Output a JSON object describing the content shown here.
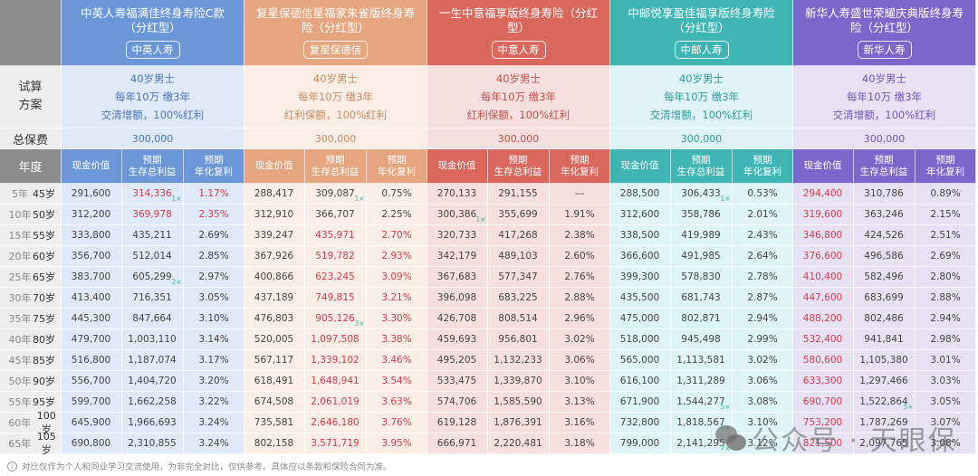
{
  "row_labels": {
    "plan": "试算\n方案",
    "premium": "总保费",
    "year": "年度"
  },
  "subheaders": [
    "现金价值",
    "预期\n生存总利益",
    "预期\n年化复利"
  ],
  "products": [
    {
      "name": "中英人寿福满佳终身寿险C款（分红型）",
      "company": "中英人寿",
      "plan": [
        "40岁男士",
        "每年10万 缴3年",
        "交清增额，100%红利"
      ],
      "premium": "300,000",
      "colors": {
        "head": "#6b97d9",
        "band": "#dfe9f8",
        "text": "#4a74b8"
      }
    },
    {
      "name": "复星保德信星福家朱雀版终身寿险（分红型）",
      "company": "复星保德信",
      "plan": [
        "40岁男士",
        "每年10万 缴3年",
        "红利保额，100%红利"
      ],
      "premium": "300,000",
      "colors": {
        "head": "#e4a57f",
        "band": "#fbeee6",
        "text": "#c98a64"
      }
    },
    {
      "name": "一生中意福享版终身寿险（分红型）",
      "company": "中意人寿",
      "plan": [
        "40岁男士",
        "每年10万 缴3年",
        "红利保额，100%红利"
      ],
      "premium": "300,000",
      "colors": {
        "head": "#d9675c",
        "band": "#f6dfdf",
        "text": "#c0504a"
      }
    },
    {
      "name": "中邮悦享盈佳福享版终身寿险（分红型）",
      "company": "中邮人寿",
      "plan": [
        "40岁男士",
        "每年10万 缴3年",
        "交清增额，100%红利"
      ],
      "premium": "300,000",
      "colors": {
        "head": "#3fb6b4",
        "band": "#def4f6",
        "text": "#2f9a98"
      }
    },
    {
      "name": "新华人寿盛世荣耀庆典版终身寿险（分红型）",
      "company": "新华人寿",
      "plan": [
        "40岁男士",
        "每年10万 缴3年",
        "交清增额，100%红利"
      ],
      "premium": "300,000",
      "colors": {
        "head": "#7b67cc",
        "band": "#e6e2f4",
        "text": "#6a58b8"
      }
    }
  ],
  "rows": [
    {
      "year": "5年",
      "age": "45岁",
      "values": [
        [
          "291,600",
          "314,336",
          "1.17%"
        ],
        [
          "288,417",
          "309,087",
          "0.75%"
        ],
        [
          "270,133",
          "291,155",
          "—"
        ],
        [
          "288,500",
          "306,433",
          "0.53%"
        ],
        [
          "294,400",
          "310,786",
          "0.89%"
        ]
      ]
    },
    {
      "year": "10年",
      "age": "50岁",
      "values": [
        [
          "312,200",
          "369,978",
          "2.35%"
        ],
        [
          "312,910",
          "366,707",
          "2.25%"
        ],
        [
          "300,386",
          "355,699",
          "1.91%"
        ],
        [
          "312,600",
          "358,786",
          "2.01%"
        ],
        [
          "319,600",
          "363,246",
          "2.15%"
        ]
      ]
    },
    {
      "year": "15年",
      "age": "55岁",
      "values": [
        [
          "333,800",
          "435,211",
          "2.69%"
        ],
        [
          "339,247",
          "435,971",
          "2.70%"
        ],
        [
          "320,733",
          "417,268",
          "2.38%"
        ],
        [
          "338,500",
          "419,989",
          "2.43%"
        ],
        [
          "346,800",
          "424,526",
          "2.51%"
        ]
      ]
    },
    {
      "year": "20年",
      "age": "60岁",
      "values": [
        [
          "356,700",
          "512,014",
          "2.85%"
        ],
        [
          "367,926",
          "519,782",
          "2.93%"
        ],
        [
          "342,179",
          "489,103",
          "2.60%"
        ],
        [
          "366,600",
          "491,985",
          "2.64%"
        ],
        [
          "376,600",
          "496,586",
          "2.69%"
        ]
      ]
    },
    {
      "year": "25年",
      "age": "65岁",
      "values": [
        [
          "383,700",
          "605,299",
          "2.97%"
        ],
        [
          "400,866",
          "623,245",
          "3.09%"
        ],
        [
          "367,683",
          "577,347",
          "2.76%"
        ],
        [
          "399,300",
          "578,830",
          "2.78%"
        ],
        [
          "410,400",
          "582,496",
          "2.80%"
        ]
      ]
    },
    {
      "year": "30年",
      "age": "70岁",
      "values": [
        [
          "413,400",
          "716,351",
          "3.05%"
        ],
        [
          "437,189",
          "749,815",
          "3.21%"
        ],
        [
          "396,098",
          "683,225",
          "2.88%"
        ],
        [
          "435,500",
          "681,743",
          "2.87%"
        ],
        [
          "447,600",
          "683,699",
          "2.88%"
        ]
      ]
    },
    {
      "year": "35年",
      "age": "75岁",
      "values": [
        [
          "445,300",
          "847,664",
          "3.10%"
        ],
        [
          "476,803",
          "905,126",
          "3.30%"
        ],
        [
          "426,708",
          "808,514",
          "2.96%"
        ],
        [
          "475,000",
          "802,871",
          "2.94%"
        ],
        [
          "488,200",
          "802,486",
          "2.94%"
        ]
      ]
    },
    {
      "year": "40年",
      "age": "80岁",
      "values": [
        [
          "479,700",
          "1,003,110",
          "3.14%"
        ],
        [
          "520,005",
          "1,097,508",
          "3.38%"
        ],
        [
          "459,693",
          "956,801",
          "3.02%"
        ],
        [
          "518,000",
          "945,498",
          "2.99%"
        ],
        [
          "532,400",
          "941,841",
          "2.98%"
        ]
      ]
    },
    {
      "year": "45年",
      "age": "85岁",
      "values": [
        [
          "516,800",
          "1,187,074",
          "3.17%"
        ],
        [
          "567,117",
          "1,339,102",
          "3.46%"
        ],
        [
          "495,205",
          "1,132,233",
          "3.06%"
        ],
        [
          "565,000",
          "1,113,581",
          "3.02%"
        ],
        [
          "580,600",
          "1,105,380",
          "3.01%"
        ]
      ]
    },
    {
      "year": "50年",
      "age": "90岁",
      "values": [
        [
          "556,700",
          "1,404,720",
          "3.20%"
        ],
        [
          "618,491",
          "1,648,941",
          "3.54%"
        ],
        [
          "533,475",
          "1,339,870",
          "3.10%"
        ],
        [
          "616,100",
          "1,311,289",
          "3.06%"
        ],
        [
          "633,300",
          "1,297,466",
          "3.03%"
        ]
      ]
    },
    {
      "year": "55年",
      "age": "95岁",
      "values": [
        [
          "599,700",
          "1,662,258",
          "3.22%"
        ],
        [
          "674,508",
          "2,061,019",
          "3.63%"
        ],
        [
          "574,706",
          "1,585,590",
          "3.13%"
        ],
        [
          "671,900",
          "1,544,277",
          "3.08%"
        ],
        [
          "690,700",
          "1,522,864",
          "3.05%"
        ]
      ]
    },
    {
      "year": "60年",
      "age": "100岁",
      "values": [
        [
          "645,900",
          "1,966,693",
          "3.24%"
        ],
        [
          "735,581",
          "2,646,180",
          "3.76%"
        ],
        [
          "619,128",
          "1,876,391",
          "3.16%"
        ],
        [
          "732,800",
          "1,818,567",
          "3.10%"
        ],
        [
          "753,200",
          "1,787,269",
          "3.07%"
        ]
      ]
    },
    {
      "year": "65年",
      "age": "105岁",
      "values": [
        [
          "690,800",
          "2,310,855",
          "3.24%"
        ],
        [
          "802,158",
          "3,571,719",
          "3.95%"
        ],
        [
          "666,971",
          "2,220,481",
          "3.18%"
        ],
        [
          "799,000",
          "2,141,295",
          "3.12%"
        ],
        [
          "821,500",
          "2,097,765",
          "3.08%"
        ]
      ]
    }
  ],
  "highlights": {
    "red_cells": [
      "0-0-1",
      "0-0-2",
      "1-0-1",
      "1-0-2",
      "2-1-1",
      "2-1-2",
      "3-1-1",
      "3-1-2",
      "4-1-1",
      "4-1-2",
      "5-1-1",
      "5-1-2",
      "6-1-1",
      "6-1-2",
      "7-1-1",
      "7-1-2",
      "8-1-1",
      "8-1-2",
      "9-1-1",
      "9-1-2",
      "10-1-1",
      "10-1-2",
      "11-1-1",
      "11-1-2",
      "12-1-1",
      "12-1-2",
      "0-4-0",
      "1-4-0",
      "2-4-0",
      "3-4-0",
      "4-4-0",
      "5-4-0",
      "6-4-0",
      "7-4-0",
      "8-4-0",
      "9-4-0",
      "10-4-0",
      "11-4-0",
      "12-4-0"
    ],
    "markers": [
      {
        "cell": "0-0-1",
        "label": "1×"
      },
      {
        "cell": "4-0-1",
        "label": "2×"
      },
      {
        "cell": "0-1-1",
        "label": "1×"
      },
      {
        "cell": "6-1-1",
        "label": "3×"
      },
      {
        "cell": "1-2-0",
        "label": "1×"
      },
      {
        "cell": "0-3-1",
        "label": "1×"
      },
      {
        "cell": "10-3-1",
        "label": "5×"
      },
      {
        "cell": "11-3-1",
        "label": "6×"
      },
      {
        "cell": "12-3-1",
        "label": "7×"
      },
      {
        "cell": "10-4-1",
        "label": "5×"
      }
    ]
  },
  "footnote": "对比仅作为个人和同业学习交流使用，为非完全对比，仅供参考。具体应以条款和保险合同为准。",
  "watermark": "公众号 · 天眼保"
}
